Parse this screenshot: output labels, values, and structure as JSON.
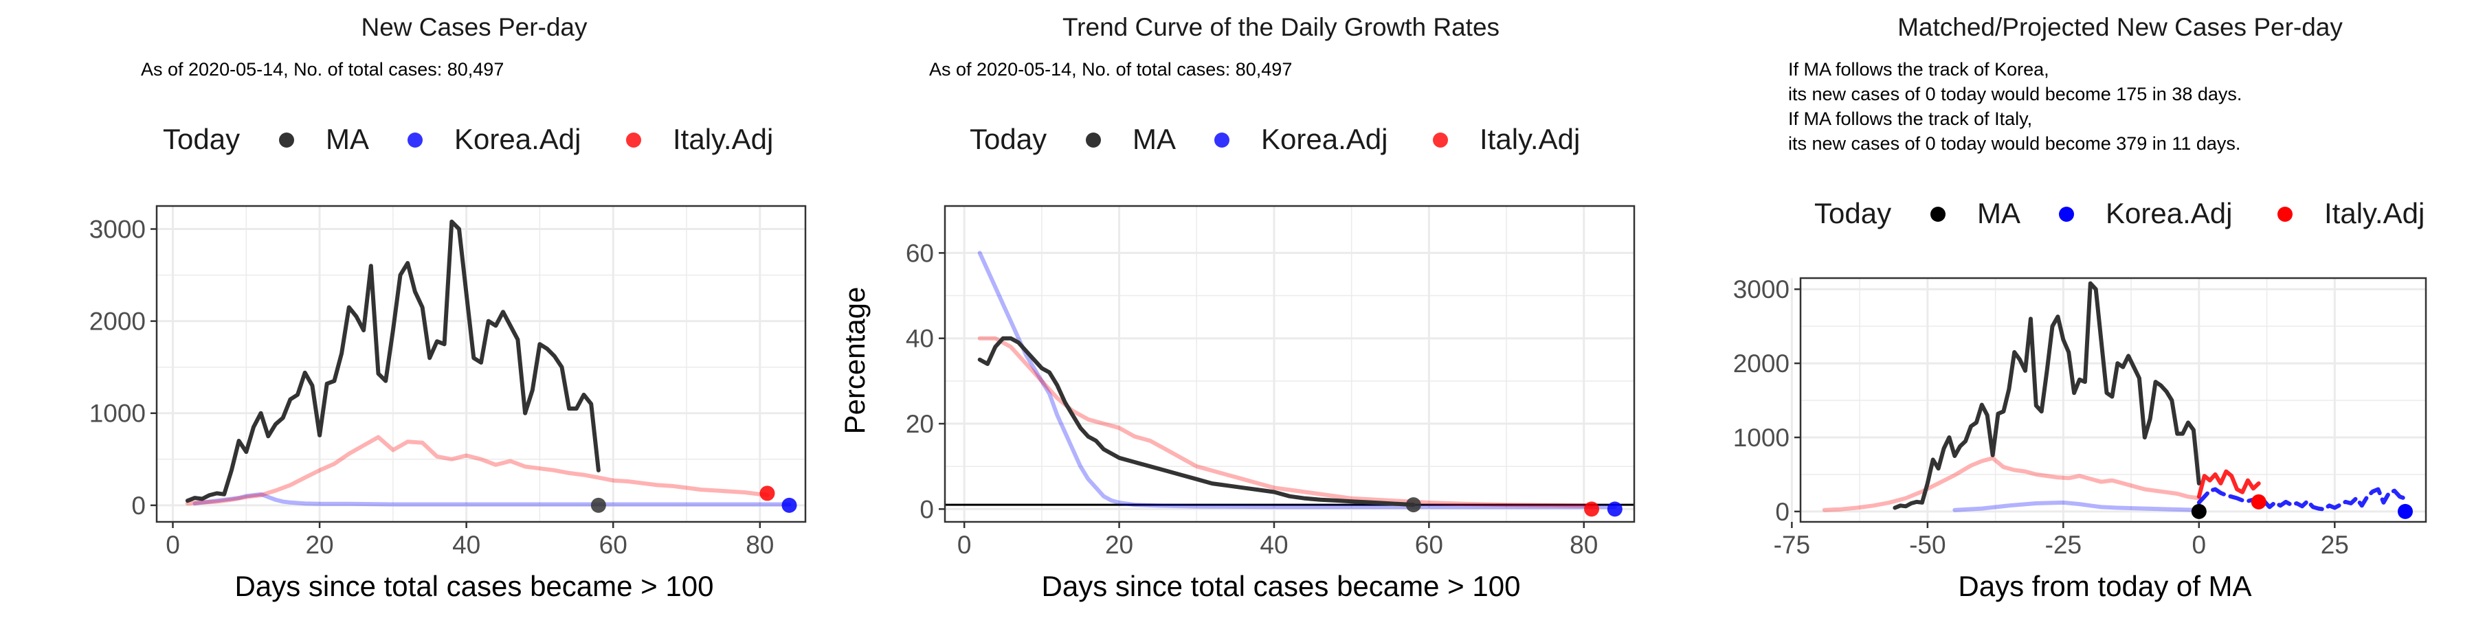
{
  "colors": {
    "ma": "#333333",
    "korea": "#0000ff",
    "italy": "#ff0000",
    "grid": "#ebebeb",
    "border": "#333333"
  },
  "legend": {
    "title": "Today",
    "items": [
      "MA",
      "Korea.Adj",
      "Italy.Adj"
    ]
  },
  "panels": [
    {
      "id": "p1",
      "title": "New Cases Per-day",
      "subtitle": [
        "As of 2020-05-14, No. of total cases: 80,497"
      ],
      "xlabel": "Days since total cases became > 100",
      "ylabel": "",
      "xticks": [
        "0",
        "20",
        "40",
        "60",
        "80"
      ],
      "yticks": [
        "0",
        "1000",
        "2000",
        "3000"
      ]
    },
    {
      "id": "p2",
      "title": "Trend Curve of the Daily Growth Rates",
      "subtitle": [
        "As of 2020-05-14, No. of total cases: 80,497"
      ],
      "xlabel": "Days since total cases became > 100",
      "ylabel": "Percentage",
      "xticks": [
        "0",
        "20",
        "40",
        "60",
        "80"
      ],
      "yticks": [
        "0",
        "20",
        "40",
        "60"
      ]
    },
    {
      "id": "p3",
      "title": "Matched/Projected New Cases Per-day",
      "subtitle": [
        "If MA follows the track of Korea,",
        "its new cases of 0 today would become 175 in 38 days.",
        "If MA follows the track of Italy,",
        "its new cases of 0 today would become 379 in 11 days."
      ],
      "xlabel": "Days from today of MA",
      "ylabel": "",
      "xticks": [
        "-75",
        "-50",
        "-25",
        "0",
        "25"
      ],
      "yticks": [
        "0",
        "1000",
        "2000",
        "3000"
      ]
    }
  ],
  "chart_data": [
    {
      "type": "line",
      "title": "New Cases Per-day",
      "xlabel": "Days since total cases became > 100",
      "ylabel": "",
      "xlim": [
        -2.2,
        86.2
      ],
      "ylim": [
        -180,
        3250
      ],
      "grid": true,
      "legend": "top",
      "series": [
        {
          "name": "MA",
          "style": "line",
          "x": [
            2,
            3,
            4,
            5,
            6,
            7,
            8,
            9,
            10,
            11,
            12,
            13,
            14,
            15,
            16,
            17,
            18,
            19,
            20,
            21,
            22,
            23,
            24,
            25,
            26,
            27,
            28,
            29,
            30,
            31,
            32,
            33,
            34,
            35,
            36,
            37,
            38,
            39,
            40,
            41,
            42,
            43,
            44,
            45,
            46,
            47,
            48,
            49,
            50,
            51,
            52,
            53,
            54,
            55,
            56,
            57,
            58
          ],
          "y": [
            50,
            80,
            70,
            110,
            130,
            120,
            380,
            700,
            580,
            850,
            1000,
            750,
            880,
            950,
            1150,
            1200,
            1440,
            1300,
            760,
            1320,
            1350,
            1650,
            2150,
            2050,
            1900,
            2600,
            1430,
            1350,
            1900,
            2500,
            2630,
            2320,
            2150,
            1600,
            1780,
            1750,
            3080,
            3000,
            2300,
            1600,
            1550,
            2000,
            1950,
            2100,
            1950,
            1800,
            1000,
            1250,
            1750,
            1700,
            1620,
            1500,
            1050,
            1050,
            1200,
            1100,
            380
          ],
          "endpoint": [
            58,
            0
          ]
        },
        {
          "name": "Korea.Adj",
          "style": "faint",
          "x": [
            3,
            5,
            7,
            9,
            10,
            11,
            12,
            13,
            14,
            15,
            16,
            18,
            20,
            24,
            30,
            40,
            50,
            60,
            70,
            80,
            84
          ],
          "y": [
            20,
            40,
            60,
            80,
            100,
            110,
            120,
            90,
            60,
            40,
            30,
            20,
            15,
            15,
            10,
            10,
            10,
            10,
            10,
            10,
            10
          ],
          "endpoint": [
            84,
            0
          ]
        },
        {
          "name": "Italy.Adj",
          "style": "faint",
          "x": [
            2,
            4,
            6,
            8,
            10,
            12,
            14,
            16,
            18,
            20,
            22,
            24,
            26,
            28,
            30,
            32,
            34,
            36,
            38,
            40,
            42,
            44,
            46,
            48,
            50,
            52,
            54,
            56,
            58,
            60,
            62,
            64,
            66,
            68,
            70,
            72,
            74,
            76,
            78,
            80,
            81
          ],
          "y": [
            20,
            30,
            40,
            60,
            90,
            110,
            160,
            220,
            300,
            380,
            450,
            560,
            650,
            740,
            600,
            690,
            680,
            530,
            500,
            540,
            500,
            440,
            480,
            420,
            400,
            380,
            350,
            330,
            300,
            270,
            260,
            240,
            220,
            210,
            190,
            170,
            160,
            150,
            140,
            120,
            110
          ],
          "endpoint": [
            81,
            130
          ]
        }
      ]
    },
    {
      "type": "line",
      "title": "Trend Curve of the Daily Growth Rates",
      "xlabel": "Days since total cases became > 100",
      "ylabel": "Percentage",
      "xlim": [
        -2.5,
        86.5
      ],
      "ylim": [
        -3,
        71
      ],
      "grid": true,
      "hline": 1,
      "legend": "top",
      "series": [
        {
          "name": "MA",
          "style": "line",
          "x": [
            2,
            3,
            4,
            5,
            6,
            7,
            8,
            9,
            10,
            11,
            12,
            13,
            14,
            15,
            16,
            17,
            18,
            19,
            20,
            22,
            24,
            26,
            28,
            30,
            32,
            34,
            36,
            38,
            40,
            42,
            44,
            46,
            48,
            50,
            52,
            54,
            56,
            58
          ],
          "y": [
            35,
            34,
            38,
            40,
            40,
            39,
            37,
            35,
            33,
            32,
            29,
            25,
            22,
            19,
            17,
            16,
            14,
            13,
            12,
            11,
            10,
            9,
            8,
            7,
            6,
            5.5,
            5,
            4.5,
            4,
            3,
            2.5,
            2.2,
            2,
            1.8,
            1.6,
            1.4,
            1.2,
            1
          ],
          "endpoint": [
            58,
            1
          ]
        },
        {
          "name": "Korea.Adj",
          "style": "faint",
          "x": [
            2,
            3,
            4,
            5,
            6,
            7,
            8,
            9,
            10,
            11,
            12,
            13,
            14,
            15,
            16,
            17,
            18,
            19,
            20,
            22,
            25,
            30,
            40,
            50,
            60,
            70,
            80,
            84
          ],
          "y": [
            60,
            56,
            52,
            48,
            44,
            40,
            36,
            33,
            30,
            27,
            22,
            18,
            14,
            10,
            7,
            5,
            3,
            2,
            1.5,
            1,
            0.8,
            0.6,
            0.5,
            0.5,
            0.5,
            0.5,
            0.5,
            0.5
          ],
          "endpoint": [
            84,
            0
          ]
        },
        {
          "name": "Italy.Adj",
          "style": "faint",
          "x": [
            2,
            4,
            6,
            8,
            10,
            12,
            14,
            16,
            18,
            20,
            22,
            24,
            26,
            28,
            30,
            32,
            34,
            36,
            38,
            40,
            42,
            44,
            46,
            48,
            50,
            55,
            60,
            65,
            70,
            75,
            80,
            81
          ],
          "y": [
            40,
            40,
            38,
            34,
            30,
            26,
            23,
            21,
            20,
            19,
            17,
            16,
            14,
            12,
            10,
            9,
            8,
            7,
            6,
            5,
            4.5,
            4,
            3.5,
            3,
            2.5,
            2,
            1.5,
            1.2,
            1,
            0.9,
            0.8,
            0.8
          ],
          "endpoint": [
            81,
            0
          ]
        }
      ]
    },
    {
      "type": "line",
      "title": "Matched/Projected New Cases Per-day",
      "xlabel": "Days from today of MA",
      "ylabel": "",
      "xlim": [
        -73.4,
        41.8
      ],
      "ylim": [
        -140,
        3150
      ],
      "grid": true,
      "legend": "top",
      "series": [
        {
          "name": "MA",
          "style": "line",
          "x": [
            -56,
            -55,
            -54,
            -53,
            -52,
            -51,
            -50,
            -49,
            -48,
            -47,
            -46,
            -45,
            -44,
            -43,
            -42,
            -41,
            -40,
            -39,
            -38,
            -37,
            -36,
            -35,
            -34,
            -33,
            -32,
            -31,
            -30,
            -29,
            -28,
            -27,
            -26,
            -25,
            -24,
            -23,
            -22,
            -21,
            -20,
            -19,
            -18,
            -17,
            -16,
            -15,
            -14,
            -13,
            -12,
            -11,
            -10,
            -9,
            -8,
            -7,
            -6,
            -5,
            -4,
            -3,
            -2,
            -1,
            0
          ],
          "y": [
            50,
            80,
            70,
            110,
            130,
            120,
            380,
            700,
            580,
            850,
            1000,
            750,
            880,
            950,
            1150,
            1200,
            1440,
            1300,
            760,
            1320,
            1350,
            1650,
            2150,
            2050,
            1900,
            2600,
            1430,
            1350,
            1900,
            2500,
            2630,
            2320,
            2150,
            1600,
            1780,
            1750,
            3080,
            3000,
            2300,
            1600,
            1550,
            2000,
            1950,
            2100,
            1950,
            1800,
            1000,
            1250,
            1750,
            1700,
            1620,
            1500,
            1050,
            1050,
            1200,
            1100,
            380
          ],
          "endpoint": [
            0,
            0
          ]
        },
        {
          "name": "Korea.Adj",
          "style": "faint",
          "x": [
            -45,
            -40,
            -35,
            -30,
            -25,
            -22,
            -20,
            -18,
            -15,
            -10,
            -5,
            0
          ],
          "y": [
            20,
            40,
            80,
            110,
            120,
            100,
            80,
            60,
            50,
            40,
            30,
            20
          ]
        },
        {
          "name": "Italy.Adj",
          "style": "faint",
          "x": [
            -69,
            -66,
            -63,
            -60,
            -57,
            -54,
            -51,
            -48,
            -45,
            -42,
            -40,
            -38,
            -36,
            -34,
            -32,
            -30,
            -28,
            -26,
            -24,
            -22,
            -20,
            -18,
            -16,
            -14,
            -12,
            -10,
            -8,
            -6,
            -4,
            -2,
            0
          ],
          "y": [
            20,
            30,
            50,
            80,
            120,
            180,
            270,
            380,
            490,
            620,
            680,
            720,
            600,
            560,
            540,
            500,
            480,
            460,
            450,
            480,
            440,
            400,
            420,
            380,
            340,
            300,
            280,
            260,
            240,
            200,
            180
          ]
        },
        {
          "name": "Korea.Adj",
          "style": "dashed",
          "x": [
            0,
            1,
            2,
            3,
            4,
            5,
            6,
            7,
            8,
            9,
            10,
            11,
            12,
            13,
            14,
            15,
            16,
            17,
            18,
            19,
            20,
            21,
            22,
            23,
            24,
            25,
            26,
            27,
            28,
            29,
            30,
            31,
            32,
            33,
            34,
            35,
            36,
            37,
            38
          ],
          "y": [
            120,
            200,
            280,
            300,
            250,
            220,
            200,
            180,
            150,
            140,
            160,
            90,
            140,
            60,
            120,
            80,
            130,
            90,
            110,
            70,
            140,
            60,
            40,
            30,
            80,
            50,
            90,
            130,
            110,
            180,
            80,
            200,
            270,
            300,
            120,
            250,
            280,
            200,
            175
          ],
          "endpoint": [
            38,
            0
          ]
        },
        {
          "name": "Italy.Adj",
          "style": "projection",
          "x": [
            0,
            1,
            2,
            3,
            4,
            5,
            6,
            7,
            8,
            9,
            10,
            11
          ],
          "y": [
            200,
            480,
            420,
            500,
            380,
            540,
            480,
            300,
            260,
            420,
            310,
            379
          ],
          "endpoint": [
            11,
            130
          ]
        }
      ]
    }
  ]
}
